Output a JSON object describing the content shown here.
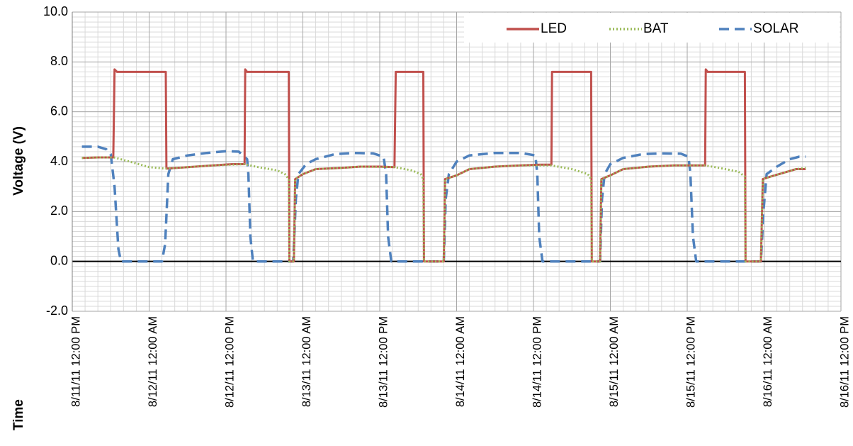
{
  "chart_data": {
    "type": "line",
    "ylabel": "Voltage (V)",
    "xlabel": "Time",
    "ylim": [
      -2.0,
      10.0
    ],
    "y_ticks": [
      "10.0",
      "8.0",
      "6.0",
      "4.0",
      "2.0",
      "0.0",
      "-2.0"
    ],
    "x_ticks": [
      "8/11/11 12:00 PM",
      "8/12/11 12:00 AM",
      "8/12/11 12:00 PM",
      "8/13/11 12:00 AM",
      "8/13/11 12:00 PM",
      "8/14/11 12:00 AM",
      "8/14/11 12:00 PM",
      "8/15/11 12:00 AM",
      "8/15/11 12:00 PM",
      "8/16/11 12:00 AM",
      "8/16/11 12:00 PM"
    ],
    "xlim_hours": [
      0,
      120
    ],
    "grid": true,
    "legend_position": "top-right",
    "series": [
      {
        "name": "LED",
        "color": "#C0504D",
        "dash": "solid",
        "points": [
          [
            1.5,
            4.15
          ],
          [
            4,
            4.17
          ],
          [
            6.4,
            4.17
          ],
          [
            6.6,
            7.7
          ],
          [
            7,
            7.6
          ],
          [
            14.6,
            7.6
          ],
          [
            14.7,
            3.72
          ],
          [
            18,
            3.78
          ],
          [
            22,
            3.85
          ],
          [
            25,
            3.9
          ],
          [
            26.9,
            3.9
          ],
          [
            27,
            7.7
          ],
          [
            27.3,
            7.6
          ],
          [
            33.8,
            7.6
          ],
          [
            33.9,
            0
          ],
          [
            34.6,
            0
          ],
          [
            34.8,
            3.3
          ],
          [
            36,
            3.5
          ],
          [
            38,
            3.7
          ],
          [
            42,
            3.75
          ],
          [
            45,
            3.8
          ],
          [
            48,
            3.8
          ],
          [
            50.3,
            3.78
          ],
          [
            50.5,
            7.6
          ],
          [
            54.8,
            7.6
          ],
          [
            54.9,
            0
          ],
          [
            58,
            0
          ],
          [
            58.2,
            3.3
          ],
          [
            60,
            3.45
          ],
          [
            62,
            3.7
          ],
          [
            66,
            3.8
          ],
          [
            70,
            3.85
          ],
          [
            73,
            3.88
          ],
          [
            74.8,
            3.88
          ],
          [
            74.9,
            7.6
          ],
          [
            81,
            7.6
          ],
          [
            81.1,
            0
          ],
          [
            82.4,
            0
          ],
          [
            82.6,
            3.3
          ],
          [
            84,
            3.45
          ],
          [
            86,
            3.7
          ],
          [
            90,
            3.8
          ],
          [
            94,
            3.85
          ],
          [
            97,
            3.85
          ],
          [
            98.8,
            3.85
          ],
          [
            98.9,
            7.7
          ],
          [
            99.2,
            7.6
          ],
          [
            105,
            7.6
          ],
          [
            105.1,
            0
          ],
          [
            107.5,
            0
          ],
          [
            107.8,
            3.3
          ],
          [
            109,
            3.4
          ],
          [
            111,
            3.55
          ],
          [
            113,
            3.7
          ],
          [
            114.5,
            3.7
          ]
        ]
      },
      {
        "name": "BAT",
        "color": "#9BBB59",
        "dash": "dotted",
        "points": [
          [
            1.5,
            4.15
          ],
          [
            4,
            4.17
          ],
          [
            6.5,
            4.17
          ],
          [
            9,
            4.0
          ],
          [
            12,
            3.78
          ],
          [
            14.6,
            3.72
          ],
          [
            18,
            3.78
          ],
          [
            22,
            3.85
          ],
          [
            26.9,
            3.9
          ],
          [
            29,
            3.78
          ],
          [
            32,
            3.65
          ],
          [
            33.2,
            3.5
          ],
          [
            33.8,
            3.3
          ],
          [
            33.9,
            0
          ],
          [
            34.6,
            0
          ],
          [
            34.8,
            3.3
          ],
          [
            36,
            3.5
          ],
          [
            38,
            3.7
          ],
          [
            42,
            3.75
          ],
          [
            45,
            3.8
          ],
          [
            50.3,
            3.78
          ],
          [
            53,
            3.65
          ],
          [
            54.4,
            3.5
          ],
          [
            54.8,
            3.3
          ],
          [
            54.9,
            0
          ],
          [
            58,
            0
          ],
          [
            58.2,
            3.3
          ],
          [
            60,
            3.45
          ],
          [
            62,
            3.7
          ],
          [
            66,
            3.8
          ],
          [
            70,
            3.85
          ],
          [
            74.8,
            3.85
          ],
          [
            78,
            3.7
          ],
          [
            80.5,
            3.5
          ],
          [
            81,
            3.3
          ],
          [
            81.1,
            0
          ],
          [
            82.4,
            0
          ],
          [
            82.6,
            3.3
          ],
          [
            84,
            3.45
          ],
          [
            86,
            3.7
          ],
          [
            90,
            3.8
          ],
          [
            94,
            3.85
          ],
          [
            98.8,
            3.85
          ],
          [
            101,
            3.75
          ],
          [
            104,
            3.6
          ],
          [
            105,
            3.4
          ],
          [
            105.1,
            0
          ],
          [
            107.5,
            0
          ],
          [
            107.8,
            3.3
          ],
          [
            109,
            3.4
          ],
          [
            111,
            3.55
          ],
          [
            113,
            3.7
          ],
          [
            114.5,
            3.75
          ]
        ]
      },
      {
        "name": "SOLAR",
        "color": "#4F81BD",
        "dash": "dashed",
        "points": [
          [
            1.5,
            4.6
          ],
          [
            4,
            4.6
          ],
          [
            5.3,
            4.5
          ],
          [
            6,
            4.3
          ],
          [
            6.6,
            3.0
          ],
          [
            7.2,
            0.5
          ],
          [
            7.6,
            0
          ],
          [
            14,
            0
          ],
          [
            14.5,
            0.7
          ],
          [
            15,
            3.5
          ],
          [
            15.7,
            4.1
          ],
          [
            18,
            4.25
          ],
          [
            21,
            4.35
          ],
          [
            24,
            4.42
          ],
          [
            26,
            4.4
          ],
          [
            27.3,
            4.1
          ],
          [
            27.5,
            3.5
          ],
          [
            27.8,
            1.0
          ],
          [
            28.2,
            0
          ],
          [
            34.5,
            0
          ],
          [
            34.9,
            2.5
          ],
          [
            35.3,
            3.5
          ],
          [
            36.5,
            3.9
          ],
          [
            38,
            4.1
          ],
          [
            41,
            4.3
          ],
          [
            44,
            4.35
          ],
          [
            47,
            4.33
          ],
          [
            48.6,
            4.2
          ],
          [
            49,
            3.5
          ],
          [
            49.3,
            1.0
          ],
          [
            49.8,
            0
          ],
          [
            58,
            0
          ],
          [
            58.3,
            2.5
          ],
          [
            58.8,
            3.5
          ],
          [
            60,
            4.0
          ],
          [
            62,
            4.25
          ],
          [
            66,
            4.35
          ],
          [
            70,
            4.35
          ],
          [
            72.3,
            4.25
          ],
          [
            72.6,
            3.5
          ],
          [
            72.9,
            1.0
          ],
          [
            73.4,
            0
          ],
          [
            82.4,
            0
          ],
          [
            82.7,
            2.5
          ],
          [
            83.1,
            3.5
          ],
          [
            84,
            3.9
          ],
          [
            86,
            4.15
          ],
          [
            89,
            4.3
          ],
          [
            92,
            4.33
          ],
          [
            95,
            4.32
          ],
          [
            96.2,
            4.2
          ],
          [
            96.5,
            3.5
          ],
          [
            96.9,
            1.0
          ],
          [
            97.4,
            0
          ],
          [
            107.5,
            0
          ],
          [
            107.9,
            2.0
          ],
          [
            108.4,
            3.5
          ],
          [
            110,
            3.8
          ],
          [
            112,
            4.1
          ],
          [
            113.5,
            4.2
          ],
          [
            114.5,
            4.2
          ]
        ]
      }
    ]
  }
}
